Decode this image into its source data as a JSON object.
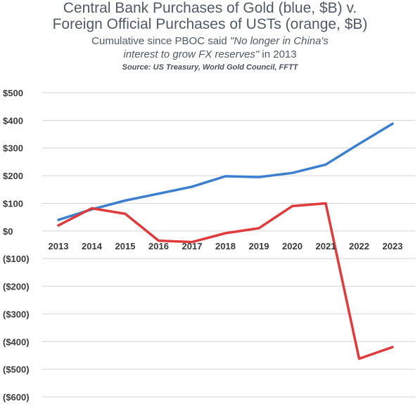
{
  "chart_data": {
    "type": "line",
    "title_line1": "Central Bank Purchases of Gold (blue, $B) v.",
    "title_line2": "Foreign Official Purchases of USTs (orange, $B)",
    "subtitle_part1": "Cumulative since PBOC said ",
    "subtitle_quote1": "\"No longer in China's",
    "subtitle_quote2": "interest to grow FX reserves\"",
    "subtitle_part2": " in 2013",
    "source": "Source: US Treasury, World Gold Council, FFTT",
    "categories": [
      "2013",
      "2014",
      "2015",
      "2016",
      "2017",
      "2018",
      "2019",
      "2020",
      "2021",
      "2022",
      "2023"
    ],
    "y_ticks": [
      "$500",
      "$400",
      "$300",
      "$200",
      "$100",
      "$0",
      "($100)",
      "($200)",
      "($300)",
      "($400)",
      "($500)",
      "($600)"
    ],
    "ylim": [
      -600,
      500
    ],
    "grid": true,
    "series": [
      {
        "color": "#3a7fd0",
        "values": [
          40,
          78,
          110,
          135,
          160,
          198,
          195,
          210,
          240,
          315,
          388
        ]
      },
      {
        "color": "#e03a3a",
        "values": [
          20,
          82,
          62,
          -35,
          -40,
          -8,
          10,
          90,
          100,
          -462,
          -420
        ]
      }
    ]
  }
}
